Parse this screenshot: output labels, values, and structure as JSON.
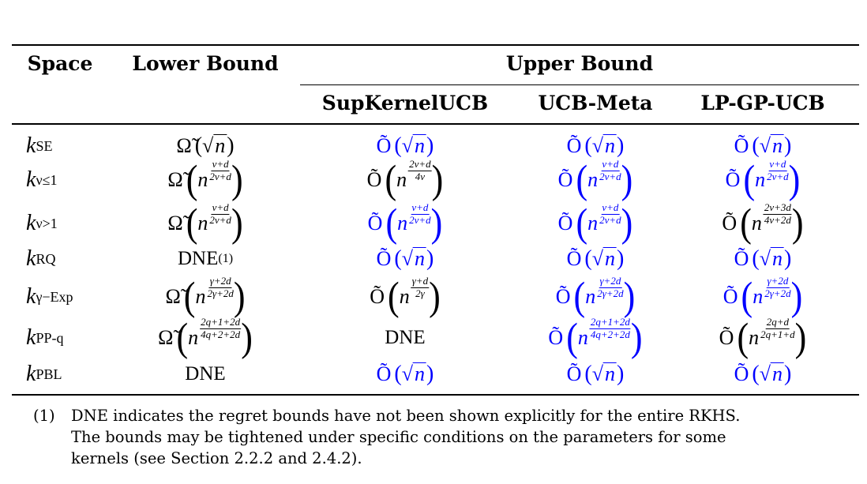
{
  "header": {
    "space": "Space",
    "lower": "Lower Bound",
    "upper": "Upper Bound",
    "algos": [
      "SupKernelUCB",
      "UCB-Meta",
      "LP-GP-UCB"
    ]
  },
  "colors": {
    "highlight": "#0000ff",
    "normal": "#000000"
  },
  "rows": [
    {
      "k": "k",
      "sub": "SE",
      "cells": [
        {
          "op": "Ω̃",
          "type": "sqrt",
          "base": "n",
          "color": "black"
        },
        {
          "op": "Õ",
          "type": "sqrt",
          "base": "n",
          "color": "blue"
        },
        {
          "op": "Õ",
          "type": "sqrt",
          "base": "n",
          "color": "blue"
        },
        {
          "op": "Õ",
          "type": "sqrt",
          "base": "n",
          "color": "blue"
        }
      ]
    },
    {
      "k": "k",
      "sub": "ν≤1",
      "cells": [
        {
          "op": "Ω̃",
          "type": "frac",
          "base": "n",
          "num": "ν+d",
          "den": "2ν+d",
          "color": "black"
        },
        {
          "op": "Õ",
          "type": "frac",
          "base": "n",
          "num": "2ν+d",
          "den": "4ν",
          "color": "black"
        },
        {
          "op": "Õ",
          "type": "frac",
          "base": "n",
          "num": "ν+d",
          "den": "2ν+d",
          "color": "blue"
        },
        {
          "op": "Õ",
          "type": "frac",
          "base": "n",
          "num": "ν+d",
          "den": "2ν+d",
          "color": "blue"
        }
      ]
    },
    {
      "k": "k",
      "sub": "ν>1",
      "cells": [
        {
          "op": "Ω̃",
          "type": "frac",
          "base": "n",
          "num": "ν+d",
          "den": "2ν+d",
          "color": "black"
        },
        {
          "op": "Õ",
          "type": "frac",
          "base": "n",
          "num": "ν+d",
          "den": "2ν+d",
          "color": "blue"
        },
        {
          "op": "Õ",
          "type": "frac",
          "base": "n",
          "num": "ν+d",
          "den": "2ν+d",
          "color": "blue"
        },
        {
          "op": "Õ",
          "type": "frac",
          "base": "n",
          "num": "2ν+3d",
          "den": "4ν+2d",
          "color": "black"
        }
      ]
    },
    {
      "k": "k",
      "sub": "RQ",
      "cells": [
        {
          "type": "text",
          "text": "DNE",
          "sup": "(1)",
          "color": "black"
        },
        {
          "op": "Õ",
          "type": "sqrt",
          "base": "n",
          "color": "blue"
        },
        {
          "op": "Õ",
          "type": "sqrt",
          "base": "n",
          "color": "blue"
        },
        {
          "op": "Õ",
          "type": "sqrt",
          "base": "n",
          "color": "blue"
        }
      ]
    },
    {
      "k": "k",
      "sub": "γ−Exp",
      "cells": [
        {
          "op": "Ω̃",
          "type": "frac",
          "base": "n",
          "num": "γ+2d",
          "den": "2γ+2d",
          "color": "black"
        },
        {
          "op": "Õ",
          "type": "frac",
          "base": "n",
          "num": "γ+d",
          "den": "2γ",
          "color": "black"
        },
        {
          "op": "Õ",
          "type": "frac",
          "base": "n",
          "num": "γ+2d",
          "den": "2γ+2d",
          "color": "blue"
        },
        {
          "op": "Õ",
          "type": "frac",
          "base": "n",
          "num": "γ+2d",
          "den": "2γ+2d",
          "color": "blue"
        }
      ]
    },
    {
      "k": "k",
      "sub": "PP-q",
      "cells": [
        {
          "op": "Ω̃",
          "type": "frac",
          "base": "n",
          "num": "2q+1+2d",
          "den": "4q+2+2d",
          "color": "black"
        },
        {
          "type": "text",
          "text": "DNE",
          "color": "black"
        },
        {
          "op": "Õ",
          "type": "frac",
          "base": "n",
          "num": "2q+1+2d",
          "den": "4q+2+2d",
          "color": "blue"
        },
        {
          "op": "Õ",
          "type": "frac",
          "base": "n",
          "num": "2q+d",
          "den": "2q+1+d",
          "color": "black"
        }
      ]
    },
    {
      "k": "k",
      "sub": "PBL",
      "cells": [
        {
          "type": "text",
          "text": "DNE",
          "color": "black"
        },
        {
          "op": "Õ",
          "type": "sqrt",
          "base": "n",
          "color": "blue"
        },
        {
          "op": "Õ",
          "type": "sqrt",
          "base": "n",
          "color": "blue"
        },
        {
          "op": "Õ",
          "type": "sqrt",
          "base": "n",
          "color": "blue"
        }
      ]
    }
  ],
  "footnote": {
    "mark": "(1)",
    "lines": [
      "DNE indicates the regret bounds have not been shown explicitly for the entire RKHS.",
      "The bounds may be tightened under specific conditions on the parameters for some",
      "kernels (see Section 2.2.2 and 2.4.2)."
    ]
  }
}
